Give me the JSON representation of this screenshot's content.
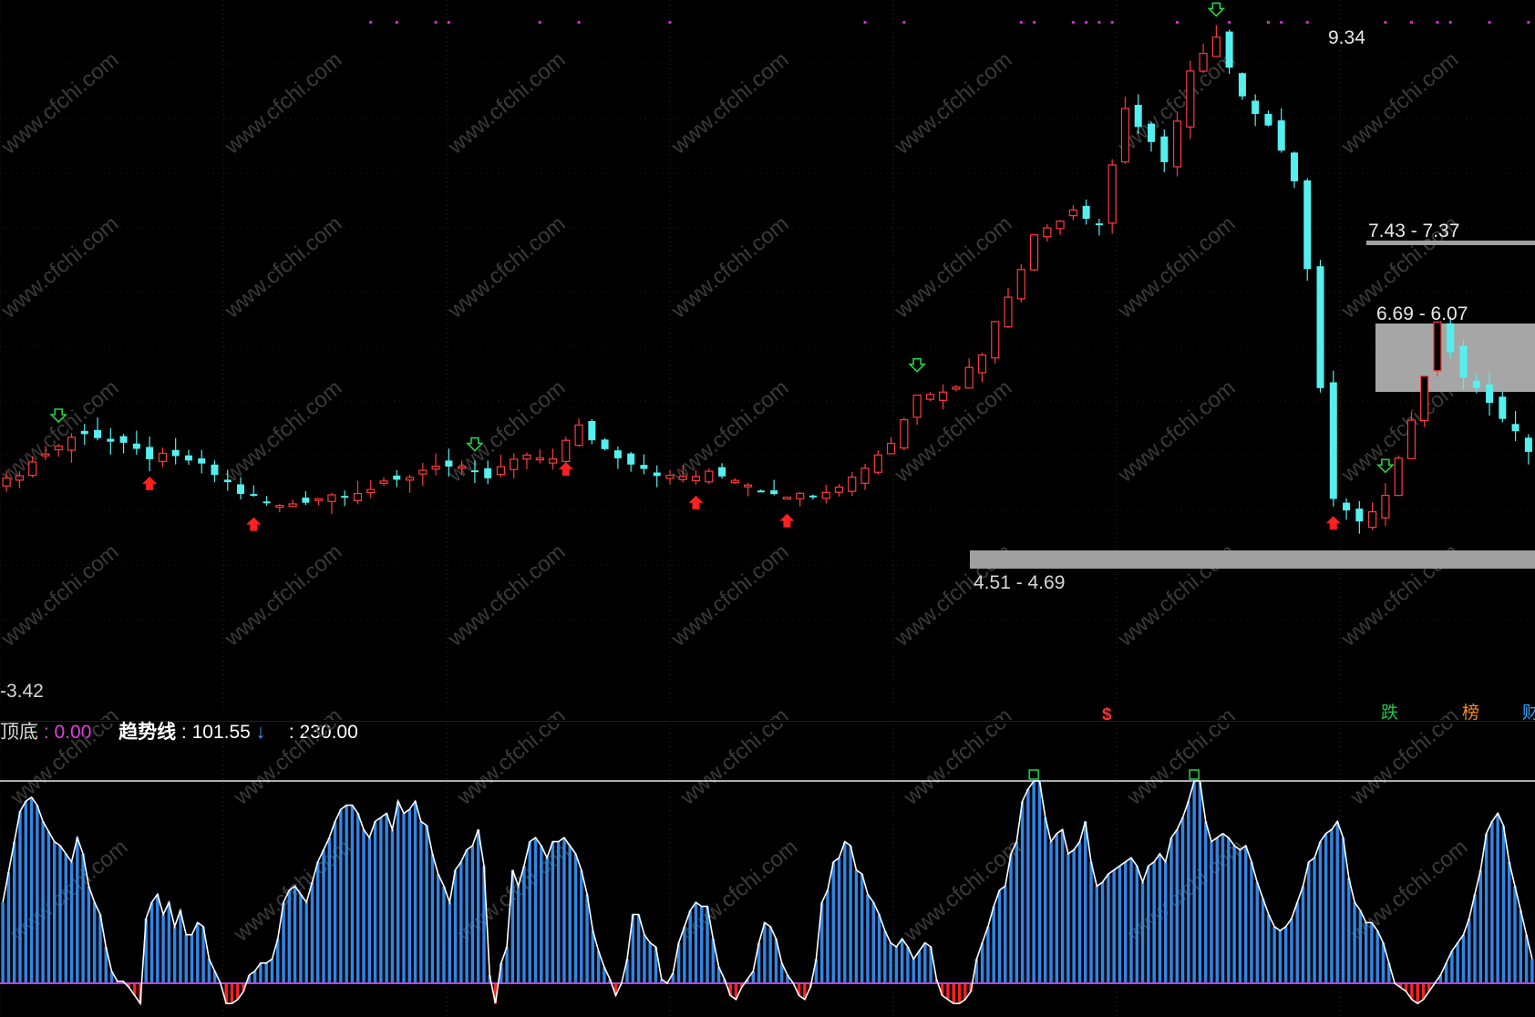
{
  "chart_data": [
    {
      "type": "candlestick",
      "title": "",
      "price_labels": {
        "low": "-3.42",
        "zone_bottom": "4.51 - 4.69",
        "zone_mid": "6.69 - 6.07",
        "zone_top": "7.43 - 7.37",
        "peak": "9.34"
      },
      "event_markers": [
        {
          "label": "$",
          "color": "#ff3030"
        },
        {
          "label": "跌",
          "color": "#22c24a"
        },
        {
          "label": "榜",
          "color": "#ff8a1c"
        },
        {
          "label": "财",
          "color": "#3aa8ff"
        }
      ],
      "close_path": [
        [
          0,
          3.2
        ],
        [
          3,
          3.6
        ],
        [
          6,
          3.9
        ],
        [
          8,
          3.75
        ],
        [
          11,
          3.55
        ],
        [
          14,
          3.5
        ],
        [
          16,
          3.3
        ],
        [
          18,
          3.05
        ],
        [
          21,
          2.85
        ],
        [
          23,
          2.95
        ],
        [
          26,
          3.05
        ],
        [
          28,
          3.1
        ],
        [
          30,
          3.2
        ],
        [
          33,
          3.45
        ],
        [
          35,
          3.35
        ],
        [
          37,
          3.25
        ],
        [
          39,
          3.5
        ],
        [
          42,
          3.55
        ],
        [
          44,
          3.95
        ],
        [
          46,
          3.65
        ],
        [
          49,
          3.4
        ],
        [
          51,
          3.25
        ],
        [
          54,
          3.3
        ],
        [
          56,
          3.25
        ],
        [
          58,
          3.1
        ],
        [
          61,
          3.0
        ],
        [
          63,
          3.1
        ],
        [
          65,
          3.25
        ],
        [
          68,
          3.75
        ],
        [
          70,
          4.4
        ],
        [
          73,
          4.55
        ],
        [
          75,
          5.0
        ],
        [
          77,
          5.8
        ],
        [
          79,
          6.6
        ],
        [
          82,
          7.0
        ],
        [
          84,
          6.8
        ],
        [
          86,
          8.4
        ],
        [
          89,
          7.6
        ],
        [
          91,
          8.9
        ],
        [
          93,
          9.34
        ],
        [
          95,
          8.5
        ],
        [
          97,
          8.2
        ],
        [
          99,
          7.4
        ],
        [
          100,
          6.1
        ],
        [
          102,
          3.0
        ],
        [
          104,
          2.6
        ],
        [
          106,
          3.0
        ],
        [
          108,
          4.0
        ],
        [
          110,
          5.4
        ],
        [
          112,
          4.7
        ],
        [
          114,
          4.3
        ],
        [
          118,
          3.4
        ]
      ],
      "signals_down": [
        4,
        36,
        70,
        93,
        106
      ],
      "signals_up": [
        11,
        19,
        43,
        53,
        60,
        102
      ]
    },
    {
      "type": "histogram",
      "labels": {
        "bottom_name": "顶底",
        "bottom_value": ": 0.00",
        "trend_name": "趋势线",
        "trend_value": ": 101.55",
        "trend_arrow": "↓",
        "third_value": ": 230.00"
      },
      "ylim": [
        -10,
        105
      ],
      "reference_line": 100,
      "series_color": "#2f86e6",
      "negative_color": "#ff2020",
      "values": [
        40,
        55,
        70,
        85,
        90,
        92,
        88,
        80,
        75,
        70,
        68,
        64,
        60,
        72,
        64,
        48,
        40,
        34,
        18,
        6,
        1,
        1,
        -2,
        -6,
        -10,
        32,
        40,
        44,
        34,
        40,
        28,
        36,
        24,
        24,
        30,
        28,
        12,
        6,
        0,
        -10,
        -10,
        -8,
        -4,
        4,
        6,
        10,
        10,
        12,
        22,
        40,
        46,
        48,
        44,
        40,
        50,
        60,
        66,
        72,
        80,
        86,
        88,
        88,
        84,
        76,
        72,
        80,
        82,
        84,
        76,
        90,
        84,
        86,
        90,
        80,
        78,
        64,
        54,
        48,
        40,
        56,
        60,
        66,
        68,
        76,
        58,
        4,
        -10,
        10,
        18,
        56,
        48,
        58,
        70,
        72,
        68,
        62,
        70,
        70,
        72,
        68,
        64,
        56,
        44,
        26,
        16,
        8,
        2,
        -6,
        0,
        12,
        34,
        34,
        24,
        20,
        18,
        2,
        0,
        5,
        20,
        28,
        36,
        40,
        38,
        38,
        22,
        8,
        2,
        -6,
        -8,
        -2,
        2,
        6,
        20,
        30,
        28,
        22,
        10,
        4,
        0,
        -6,
        -8,
        -2,
        12,
        40,
        46,
        60,
        62,
        70,
        68,
        56,
        54,
        44,
        40,
        34,
        26,
        20,
        18,
        22,
        18,
        12,
        16,
        20,
        18,
        2,
        -6,
        -8,
        -10,
        -10,
        -8,
        -4,
        12,
        20,
        28,
        38,
        46,
        48,
        64,
        70,
        90,
        96,
        100,
        100,
        82,
        70,
        74,
        76,
        64,
        66,
        70,
        80,
        60,
        48,
        50,
        54,
        56,
        58,
        60,
        62,
        58,
        50,
        58,
        60,
        64,
        60,
        72,
        76,
        82,
        90,
        100,
        100,
        80,
        70,
        72,
        74,
        72,
        68,
        66,
        68,
        60,
        50,
        42,
        34,
        28,
        26,
        28,
        32,
        40,
        48,
        60,
        62,
        70,
        74,
        76,
        80,
        72,
        52,
        40,
        36,
        30,
        30,
        26,
        20,
        10,
        0,
        -2,
        -4,
        -8,
        -10,
        -8,
        -4,
        0,
        4,
        10,
        16,
        20,
        24,
        32,
        44,
        56,
        74,
        80,
        84,
        78,
        60,
        48,
        36,
        24,
        12
      ]
    }
  ]
}
